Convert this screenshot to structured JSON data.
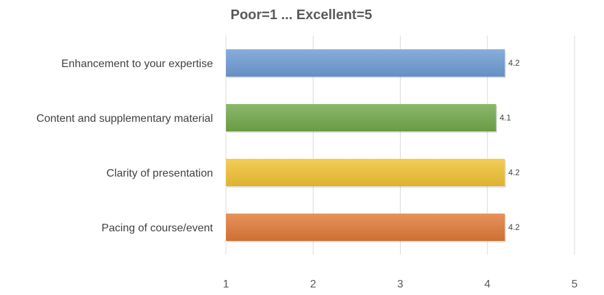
{
  "chart_data": {
    "type": "bar",
    "orientation": "horizontal",
    "title": "Poor=1 ... Excellent=5",
    "xlabel": "",
    "ylabel": "",
    "categories": [
      "Enhancement to your expertise",
      "Content and supplementary material",
      "Clarity of presentation",
      "Pacing of course/event"
    ],
    "values": [
      4.2,
      4.1,
      4.2,
      4.2
    ],
    "data_labels": [
      "4.2",
      "4.1",
      "4.2",
      "4.2"
    ],
    "colors": [
      "#6F9BD4",
      "#72A84A",
      "#F0C233",
      "#E07A38"
    ],
    "xlim": [
      1,
      5
    ],
    "xticks": [
      1,
      2,
      3,
      4,
      5
    ],
    "grid": true,
    "legend": "none"
  }
}
